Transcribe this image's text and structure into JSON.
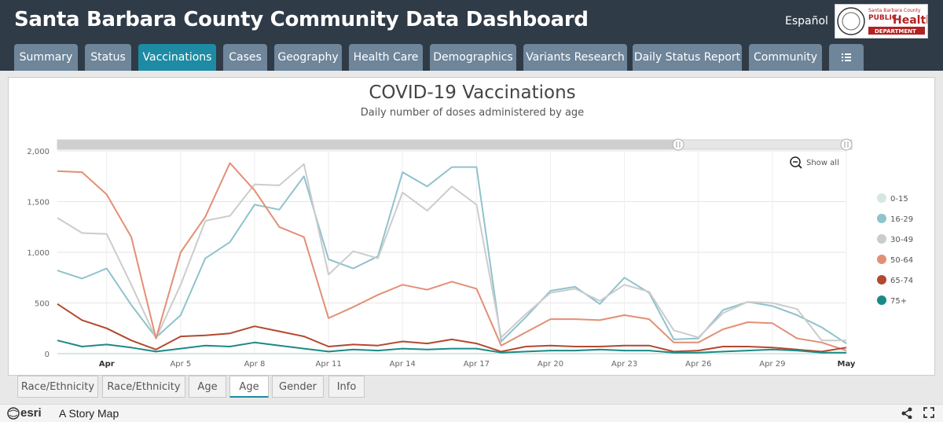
{
  "header": {
    "title": "Santa Barbara County Community Data Dashboard",
    "language_link": "Español",
    "logo": {
      "line1": "Santa Barbara County",
      "line2": "PUBLIC",
      "line3": "Health",
      "line4": "DEPARTMENT"
    }
  },
  "tabs": [
    {
      "label": "Summary",
      "active": false
    },
    {
      "label": "Status",
      "active": false
    },
    {
      "label": "Vaccinations",
      "active": true
    },
    {
      "label": "Cases",
      "active": false
    },
    {
      "label": "Geography",
      "active": false
    },
    {
      "label": "Health Care",
      "active": false
    },
    {
      "label": "Demographics",
      "active": false
    },
    {
      "label": "Variants Research",
      "active": false
    },
    {
      "label": "Daily Status Report",
      "active": false
    },
    {
      "label": "Community",
      "active": false
    },
    {
      "label": "",
      "icon": "list-menu-icon",
      "active": false
    }
  ],
  "chart_panel": {
    "show_all_label": "Show all"
  },
  "chart_data": {
    "type": "line",
    "title": "COVID-19 Vaccinations",
    "subtitle": "Daily number of doses administered by age",
    "xlabel": "",
    "ylabel": "",
    "ylim": [
      0,
      2000
    ],
    "yticks": [
      0,
      500,
      1000,
      1500,
      2000
    ],
    "ytick_labels": [
      "0",
      "500",
      "1,000",
      "1,500",
      "2,000"
    ],
    "xtick_labels": [
      "Apr",
      "Apr 5",
      "Apr 8",
      "Apr 11",
      "Apr 14",
      "Apr 17",
      "Apr 20",
      "Apr 23",
      "Apr 26",
      "Apr 29",
      "May"
    ],
    "xtick_index": [
      2,
      5,
      8,
      11,
      14,
      17,
      20,
      23,
      26,
      29,
      32
    ],
    "x": [
      "Mar 30",
      "Mar 31",
      "Apr 1",
      "Apr 2",
      "Apr 3",
      "Apr 4",
      "Apr 5",
      "Apr 6",
      "Apr 7",
      "Apr 8",
      "Apr 9",
      "Apr 10",
      "Apr 11",
      "Apr 12",
      "Apr 13",
      "Apr 14",
      "Apr 15",
      "Apr 16",
      "Apr 17",
      "Apr 18",
      "Apr 19",
      "Apr 20",
      "Apr 21",
      "Apr 22",
      "Apr 23",
      "Apr 24",
      "Apr 25",
      "Apr 26",
      "Apr 27",
      "Apr 28",
      "Apr 29",
      "Apr 30",
      "May 1"
    ],
    "legend_position": "right",
    "grid": true,
    "series": [
      {
        "name": "0-15",
        "color": "#d5e8e0",
        "values": [
          0,
          0,
          0,
          0,
          0,
          0,
          0,
          0,
          0,
          0,
          0,
          0,
          0,
          0,
          0,
          0,
          0,
          0,
          0,
          0,
          0,
          0,
          0,
          0,
          0,
          0,
          0,
          0,
          0,
          0,
          0,
          0,
          0
        ]
      },
      {
        "name": "16-29",
        "color": "#8fc3cc",
        "values": [
          820,
          740,
          840,
          480,
          160,
          380,
          940,
          1100,
          1470,
          1420,
          1750,
          930,
          840,
          960,
          1790,
          1650,
          1840,
          1840,
          120,
          360,
          620,
          660,
          490,
          750,
          600,
          140,
          150,
          430,
          510,
          470,
          380,
          260,
          100
        ]
      },
      {
        "name": "30-49",
        "color": "#cccccc",
        "values": [
          1340,
          1190,
          1180,
          680,
          150,
          680,
          1310,
          1360,
          1670,
          1660,
          1870,
          780,
          1010,
          940,
          1590,
          1410,
          1650,
          1470,
          160,
          390,
          600,
          640,
          520,
          680,
          610,
          230,
          160,
          400,
          510,
          500,
          440,
          130,
          130
        ]
      },
      {
        "name": "50-64",
        "color": "#e38f75",
        "values": [
          1800,
          1790,
          1570,
          1150,
          150,
          1000,
          1350,
          1880,
          1610,
          1250,
          1150,
          350,
          460,
          580,
          680,
          630,
          710,
          640,
          80,
          210,
          340,
          340,
          330,
          380,
          340,
          110,
          110,
          240,
          310,
          300,
          150,
          110,
          30
        ]
      },
      {
        "name": "65-74",
        "color": "#b2492f",
        "values": [
          490,
          330,
          250,
          130,
          40,
          170,
          180,
          200,
          270,
          220,
          170,
          70,
          90,
          80,
          120,
          100,
          140,
          100,
          20,
          70,
          80,
          70,
          70,
          80,
          80,
          20,
          30,
          70,
          70,
          60,
          40,
          20,
          60
        ]
      },
      {
        "name": "75+",
        "color": "#1a8a87",
        "values": [
          130,
          70,
          90,
          60,
          20,
          50,
          80,
          70,
          110,
          80,
          50,
          20,
          40,
          30,
          50,
          40,
          50,
          50,
          10,
          20,
          30,
          30,
          40,
          30,
          30,
          10,
          10,
          20,
          30,
          40,
          30,
          10,
          10
        ]
      }
    ]
  },
  "bottom_tabs": [
    {
      "label": "Race/Ethnicity",
      "active": false
    },
    {
      "label": "Race/Ethnicity",
      "active": false
    },
    {
      "label": "Age",
      "active": false
    },
    {
      "label": "Age",
      "active": true
    },
    {
      "label": "Gender",
      "active": false
    },
    {
      "label": "Info",
      "active": false
    }
  ],
  "footer": {
    "brand": "esri",
    "story_label": "A Story Map"
  }
}
